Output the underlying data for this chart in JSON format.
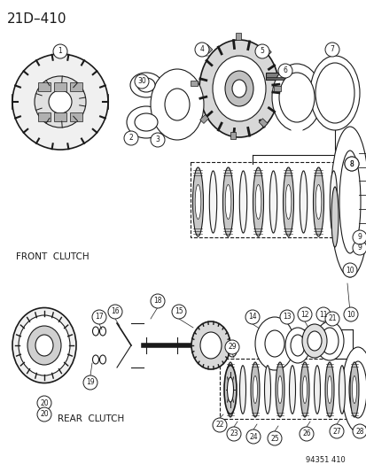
{
  "title_text": "21D–410",
  "footer_text": "94351 410",
  "front_clutch_label": "FRONT  CLUTCH",
  "rear_clutch_label": "REAR  CLUTCH",
  "bg_color": "#ffffff",
  "line_color": "#1a1a1a",
  "figsize": [
    4.14,
    5.33
  ],
  "dpi": 100
}
